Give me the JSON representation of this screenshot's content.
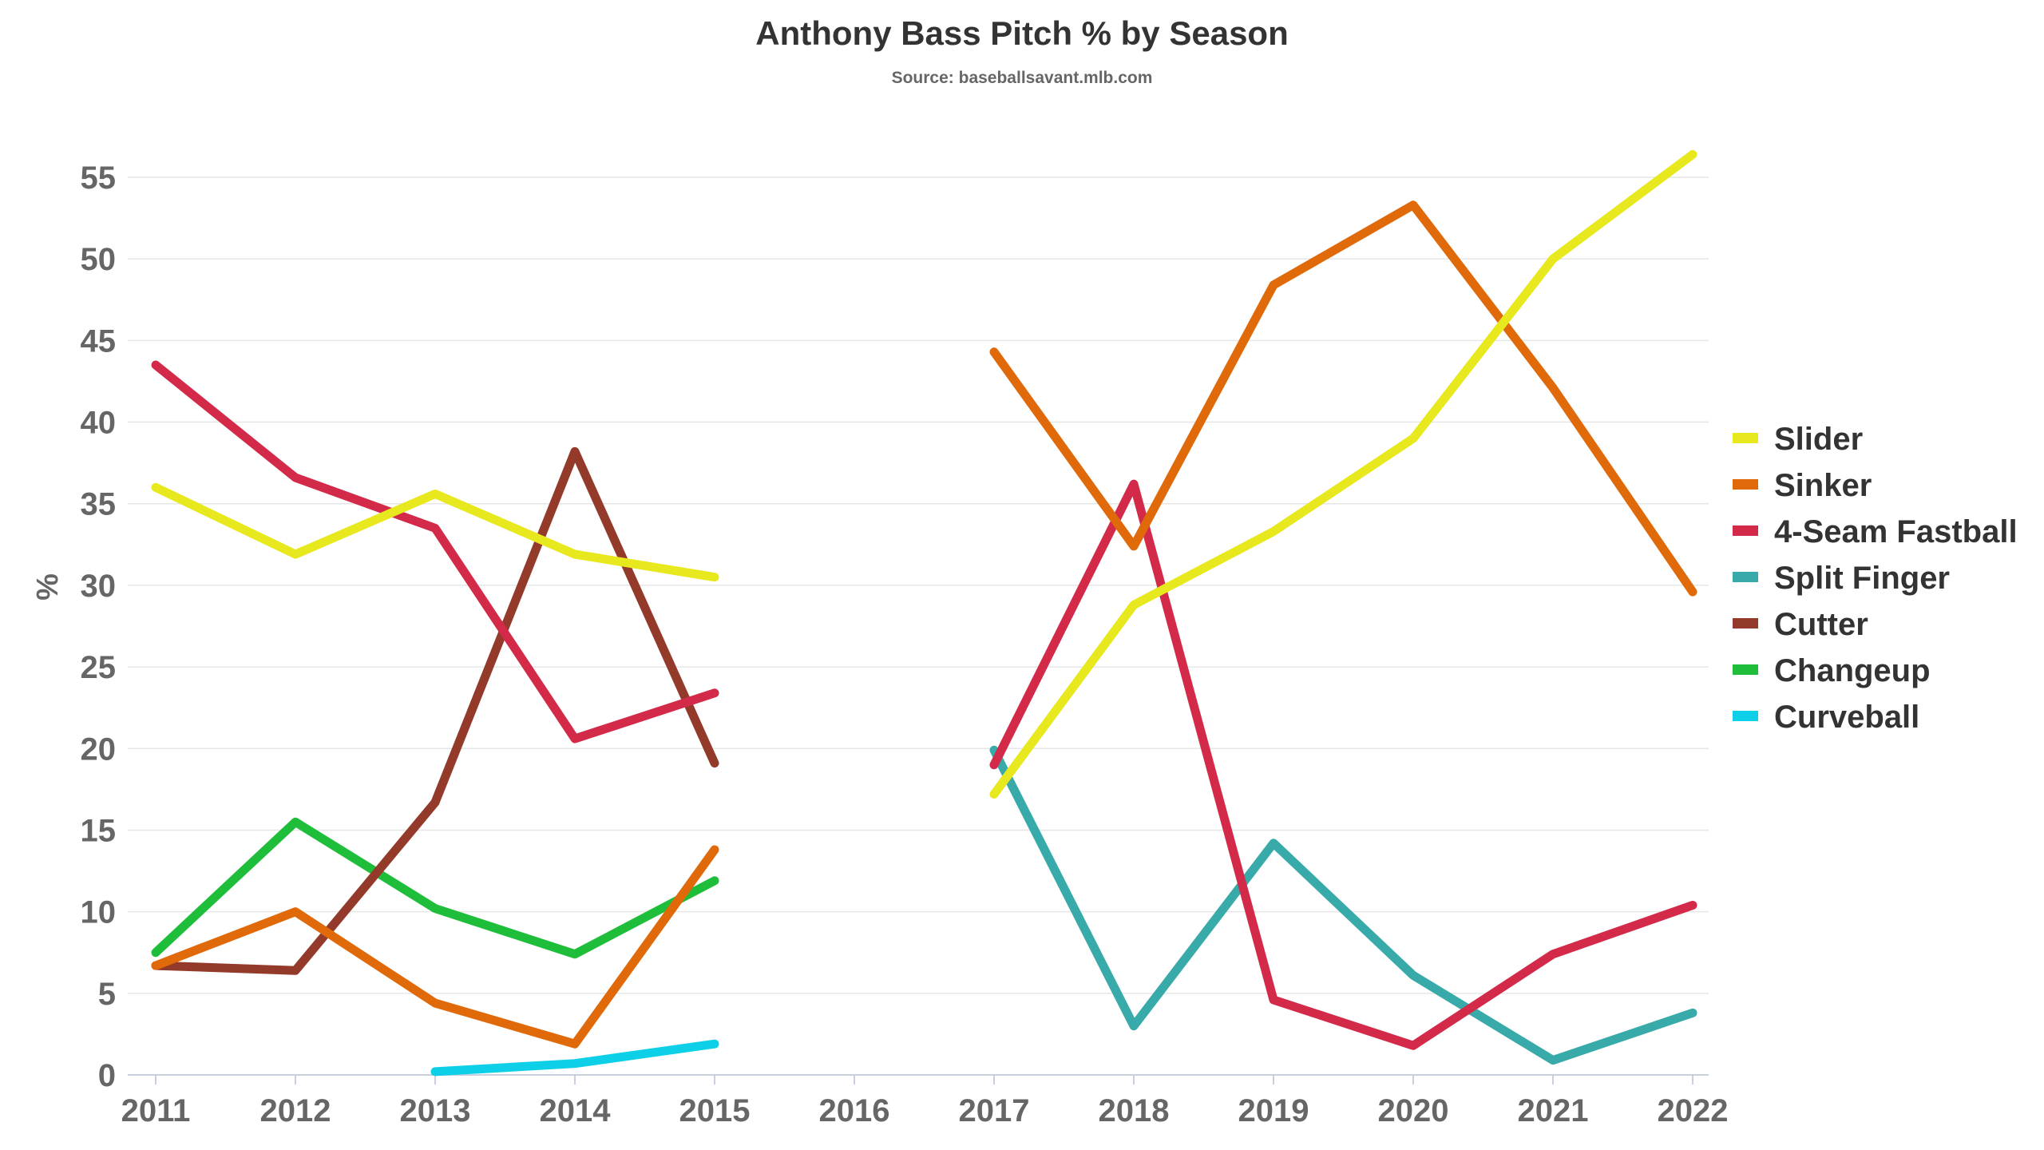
{
  "chart_data": {
    "type": "line",
    "title": "Anthony Bass Pitch % by Season",
    "subtitle": "Source: baseballsavant.mlb.com",
    "xlabel": "",
    "ylabel": "%",
    "categories": [
      "2011",
      "2012",
      "2013",
      "2014",
      "2015",
      "2016",
      "2017",
      "2018",
      "2019",
      "2020",
      "2021",
      "2022"
    ],
    "yticks": [
      "0",
      "5",
      "10",
      "15",
      "20",
      "25",
      "30",
      "35",
      "40",
      "45",
      "50",
      "55"
    ],
    "ylim": [
      0,
      57
    ],
    "grid": true,
    "legend_position": "right",
    "series": [
      {
        "name": "Slider",
        "color": "#e8e81e",
        "values": [
          36.0,
          31.9,
          35.6,
          31.9,
          30.5,
          null,
          17.2,
          28.8,
          33.3,
          39.0,
          50.0,
          56.4
        ]
      },
      {
        "name": "Sinker",
        "color": "#e06a0a",
        "values": [
          6.7,
          10.0,
          4.4,
          1.9,
          13.8,
          null,
          44.3,
          32.4,
          48.4,
          53.3,
          42.1,
          29.6
        ]
      },
      {
        "name": "4-Seam Fastball",
        "color": "#d42a4a",
        "values": [
          43.5,
          36.6,
          33.5,
          20.6,
          23.4,
          null,
          19.0,
          36.2,
          4.6,
          1.8,
          7.4,
          10.4
        ]
      },
      {
        "name": "Split Finger",
        "color": "#38aaaa",
        "values": [
          null,
          null,
          null,
          null,
          null,
          null,
          19.9,
          3.0,
          14.2,
          6.1,
          0.9,
          3.8
        ]
      },
      {
        "name": "Cutter",
        "color": "#943a2a",
        "values": [
          6.7,
          6.4,
          16.7,
          38.2,
          19.1,
          null,
          null,
          null,
          null,
          null,
          null,
          null
        ]
      },
      {
        "name": "Changeup",
        "color": "#1ebe3a",
        "values": [
          7.5,
          15.5,
          10.2,
          7.4,
          11.9,
          null,
          null,
          null,
          null,
          null,
          null,
          null
        ]
      },
      {
        "name": "Curveball",
        "color": "#0ecfe8",
        "values": [
          null,
          null,
          0.2,
          0.7,
          1.9,
          null,
          null,
          null,
          null,
          null,
          null,
          null
        ]
      }
    ]
  }
}
